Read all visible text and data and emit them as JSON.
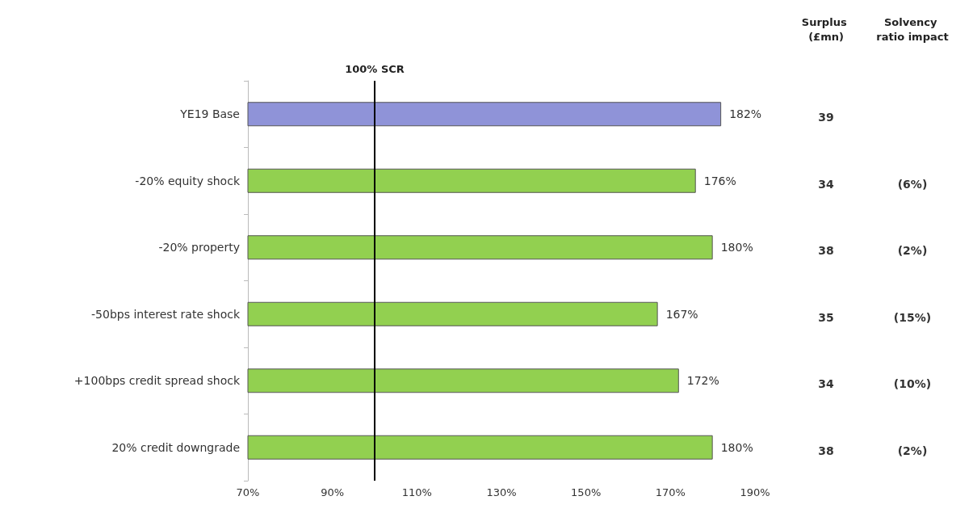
{
  "chart_data": {
    "type": "bar",
    "orientation": "horizontal",
    "categories": [
      "YE19 Base",
      "-20% equity shock",
      "-20% property",
      "-50bps interest rate shock",
      "+100bps credit spread shock",
      "20% credit downgrade"
    ],
    "values": [
      182,
      176,
      180,
      167,
      172,
      180
    ],
    "colors": [
      "#8f93d8",
      "#92d050",
      "#92d050",
      "#92d050",
      "#92d050",
      "#92d050"
    ],
    "value_labels": [
      "182%",
      "176%",
      "180%",
      "167%",
      "172%",
      "180%"
    ],
    "xlim": [
      70,
      190
    ],
    "xticks": [
      {
        "value": 70,
        "label": "70%"
      },
      {
        "value": 90,
        "label": "90%"
      },
      {
        "value": 110,
        "label": "110%"
      },
      {
        "value": 130,
        "label": "130%"
      },
      {
        "value": 150,
        "label": "150%"
      },
      {
        "value": 170,
        "label": "170%"
      },
      {
        "value": 190,
        "label": "190%"
      }
    ],
    "ref_lines": [
      {
        "axis": "x",
        "value": 100,
        "label": "100% SCR",
        "color": "#000000"
      }
    ],
    "grid": false,
    "annotations": [
      "Surplus (£mn)",
      "Solvency ratio impact",
      "39",
      "34",
      "38",
      "35",
      "34",
      "38",
      "(6%)",
      "(2%)",
      "(15%)",
      "(10%)",
      "(2%)"
    ]
  }
}
